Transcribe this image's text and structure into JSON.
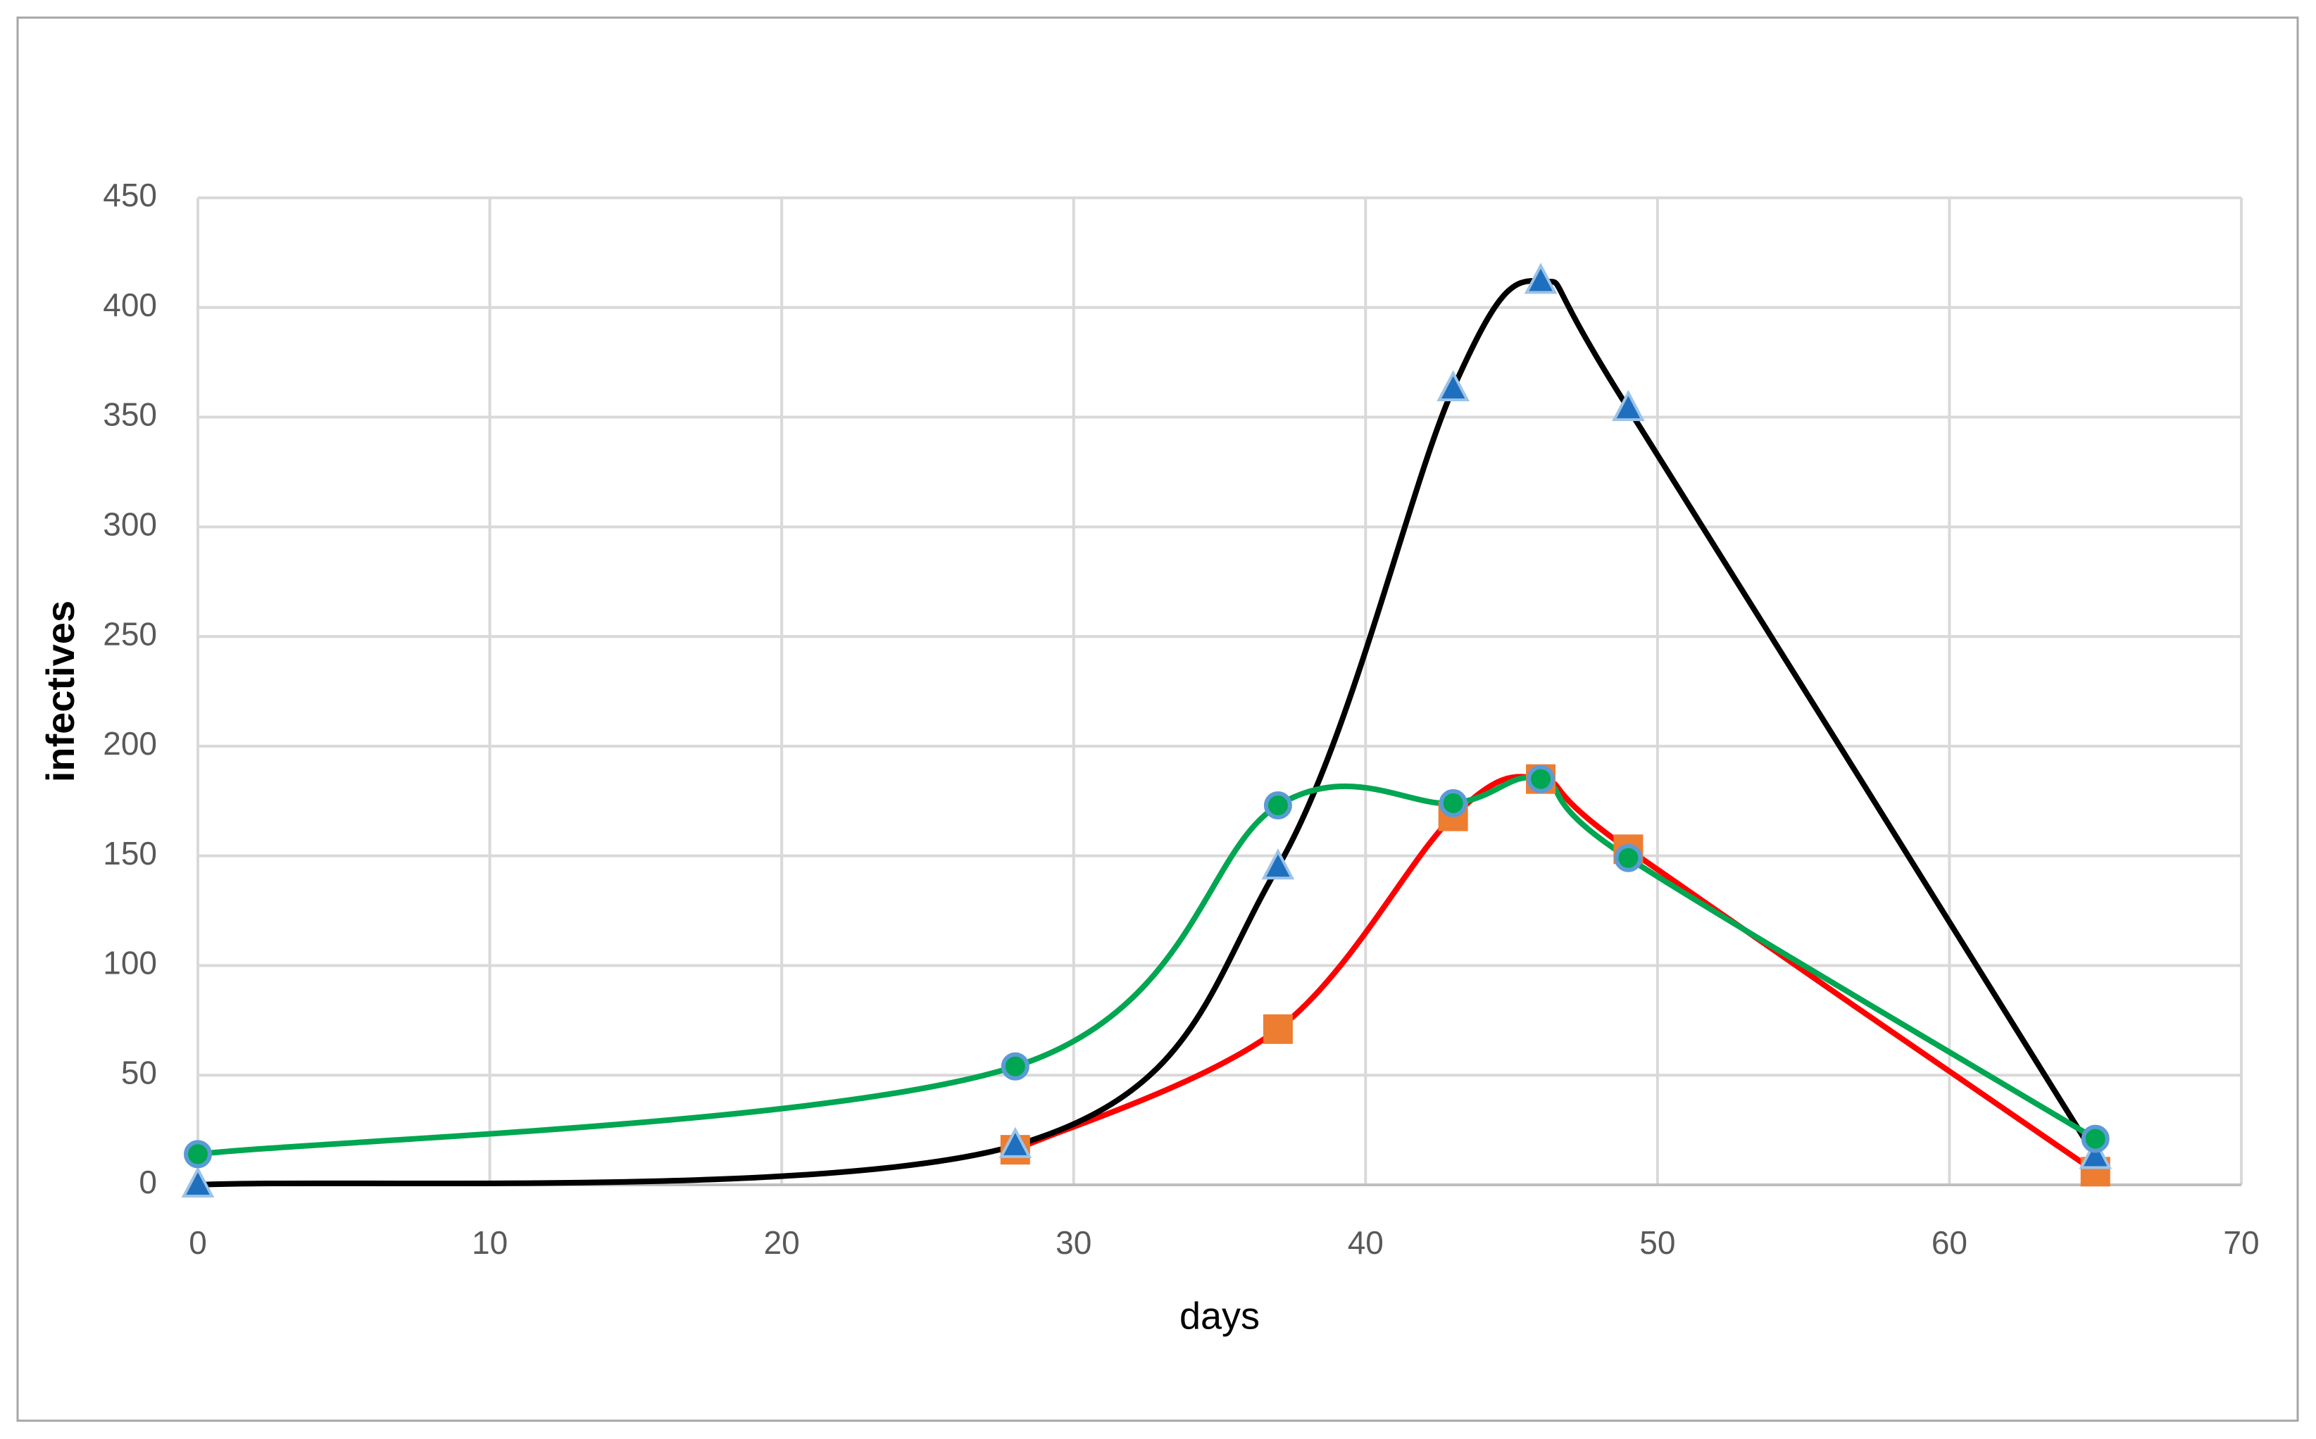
{
  "chart_data": {
    "type": "line",
    "smooth": true,
    "x_label": "days",
    "y_label": "infectives",
    "xlim": [
      0,
      70
    ],
    "xticks": [
      0,
      10,
      20,
      30,
      40,
      50,
      60,
      70
    ],
    "ylim": [
      0,
      450
    ],
    "yticks": [
      0,
      50,
      100,
      150,
      200,
      250,
      300,
      350,
      400,
      450
    ],
    "grid": true,
    "series": [
      {
        "color": "#ff0000",
        "marker": "square",
        "marker_color": "#ed7d31",
        "x": [
          28,
          37,
          43,
          46,
          49,
          65
        ],
        "values": [
          16,
          71,
          168,
          185,
          153,
          6
        ]
      },
      {
        "color": "#000000",
        "marker": "triangle",
        "marker_color": "#1f6fbf",
        "x": [
          0,
          28,
          37,
          43,
          46,
          49,
          65
        ],
        "values": [
          0,
          18,
          145,
          363,
          412,
          354,
          13
        ]
      },
      {
        "color": "#00a651",
        "marker": "circle",
        "marker_color": "#00a651",
        "x": [
          0,
          28,
          37,
          43,
          46,
          49,
          65
        ],
        "values": [
          14,
          54,
          173,
          174,
          185,
          149,
          21
        ]
      }
    ]
  }
}
